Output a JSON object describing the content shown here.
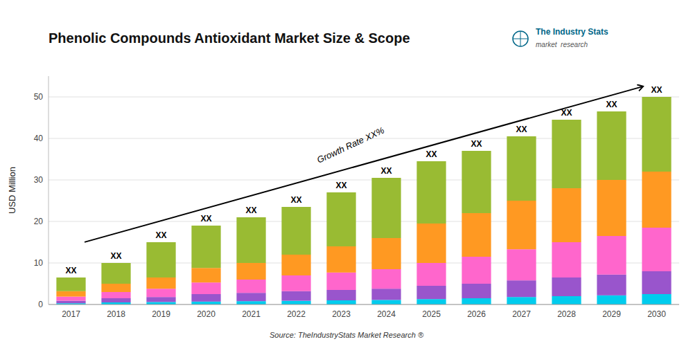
{
  "chart_data": {
    "type": "bar",
    "stacked": true,
    "title": "Phenolic Compounds Antioxidant Market Size & Scope",
    "ylabel": "USD Million",
    "source": "Source: TheIndustryStats Market Research ®",
    "categories": [
      2017,
      2018,
      2019,
      2020,
      2021,
      2022,
      2023,
      2024,
      2025,
      2026,
      2027,
      2028,
      2029,
      2030
    ],
    "series": [
      {
        "color": "#00ccee",
        "values": [
          0.3,
          0.5,
          0.6,
          0.7,
          0.8,
          0.9,
          1.0,
          1.1,
          1.3,
          1.5,
          1.8,
          2.0,
          2.2,
          2.5
        ]
      },
      {
        "color": "#9955cc",
        "values": [
          0.6,
          1.0,
          1.2,
          1.8,
          2.0,
          2.3,
          2.5,
          2.7,
          3.2,
          3.5,
          4.0,
          4.5,
          5.0,
          5.5
        ]
      },
      {
        "color": "#ff66cc",
        "values": [
          1.0,
          1.5,
          2.0,
          2.8,
          3.2,
          3.8,
          4.2,
          4.7,
          5.5,
          6.5,
          7.5,
          8.5,
          9.3,
          10.5
        ]
      },
      {
        "color": "#ff9922",
        "values": [
          1.3,
          2.0,
          2.7,
          3.5,
          4.0,
          5.0,
          6.3,
          7.5,
          9.5,
          10.5,
          11.7,
          13.0,
          13.5,
          13.5
        ]
      },
      {
        "color": "#99bb33",
        "values": [
          3.3,
          5.0,
          8.5,
          10.2,
          11.0,
          11.5,
          13.0,
          14.5,
          15.0,
          15.0,
          15.5,
          16.5,
          16.5,
          18.0
        ]
      }
    ],
    "ylim": [
      0,
      55
    ],
    "yticks": [
      0,
      10,
      20,
      30,
      40,
      50
    ],
    "grid": true,
    "annotations": [
      "XX",
      "XX",
      "XX",
      "XX",
      "XX",
      "XX",
      "XX",
      "XX",
      "XX",
      "XX",
      "XX",
      "XX",
      "XX",
      "XX",
      "Growth Rate XX%",
      "The Industry Stats",
      "market  research"
    ]
  }
}
